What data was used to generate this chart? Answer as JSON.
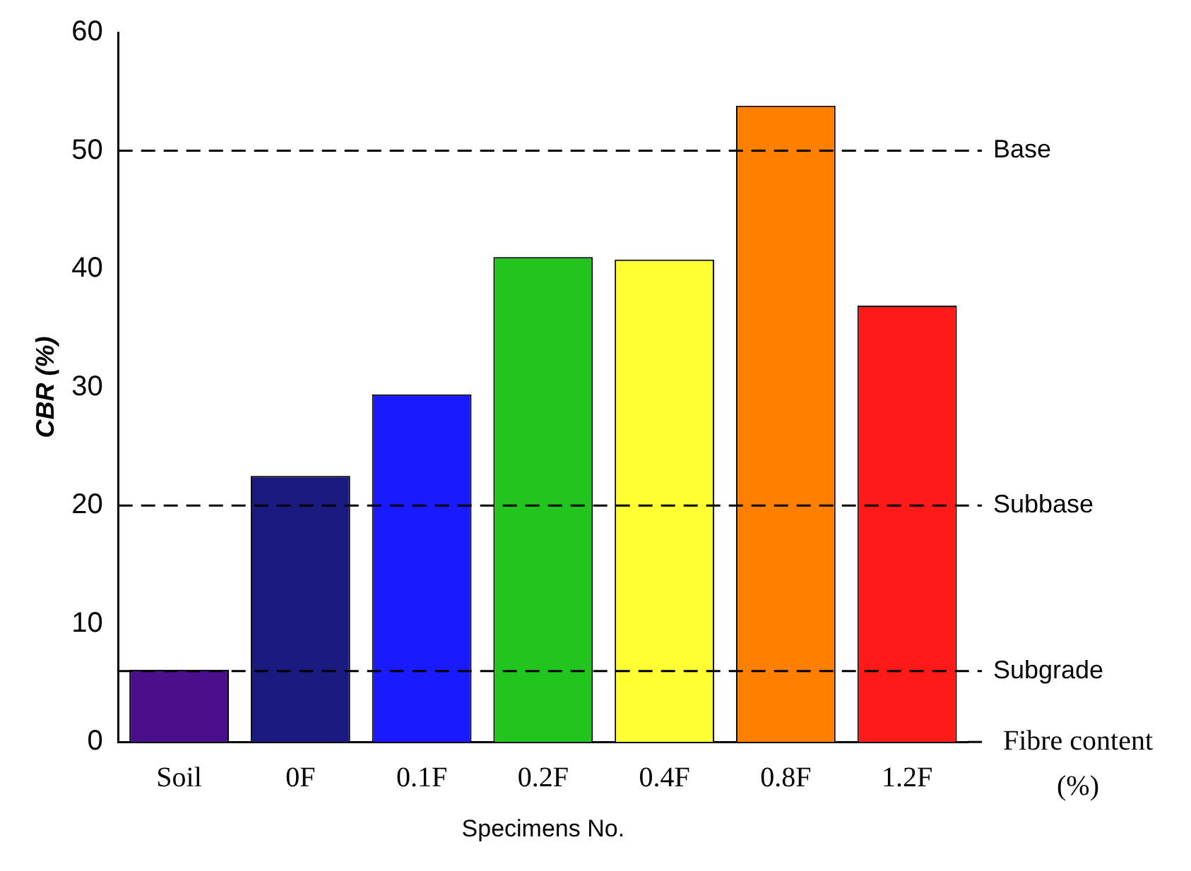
{
  "chart_data": {
    "type": "bar",
    "xlabel": "Specimens No.",
    "ylabel": "CBR (%)",
    "categories": [
      "Soil",
      "0F",
      "0.1F",
      "0.2F",
      "0.4F",
      "0.8F",
      "1.2F"
    ],
    "values": [
      6.1,
      22.5,
      29.4,
      41.0,
      40.8,
      53.8,
      36.9
    ],
    "colors": [
      "#4b0f8c",
      "#1a1a80",
      "#1a1aff",
      "#22c41e",
      "#ffff33",
      "#ff8000",
      "#ff1a1a"
    ],
    "ylim": [
      0,
      60
    ],
    "yticks": [
      0,
      10,
      20,
      30,
      40,
      50,
      60
    ],
    "grid": false,
    "legend": false,
    "ref_lines": [
      {
        "axis": "y",
        "value": 50,
        "label": "Base",
        "line_style": "dashed"
      },
      {
        "axis": "y",
        "value": 20,
        "label": "Subbase",
        "line_style": "dashed"
      },
      {
        "axis": "y",
        "value": 6,
        "label": "Subgrade",
        "line_style": "dashed"
      }
    ],
    "annotations": [
      "Fibre content (%)"
    ]
  }
}
